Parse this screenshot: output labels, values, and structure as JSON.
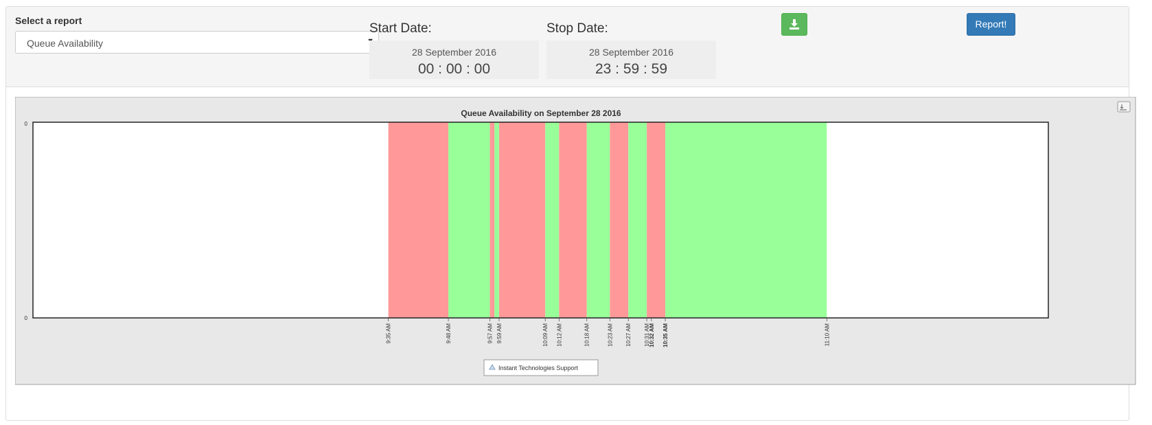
{
  "report_select": {
    "label": "Select a report",
    "selected": "Queue Availability"
  },
  "start": {
    "label": "Start Date:",
    "date": "28 September 2016",
    "time": "00 : 00 : 00"
  },
  "stop": {
    "label": "Stop Date:",
    "date": "28 September 2016",
    "time": "23 : 59 : 59"
  },
  "buttons": {
    "report_label": "Report!",
    "download_icon": "download-icon"
  },
  "colors": {
    "available": "#99ff99",
    "unavailable": "#ff9999",
    "download_button": "#5cb85c",
    "report_button": "#337ab7"
  },
  "chart_data": {
    "type": "area",
    "title": "Queue Availability on September 28 2016",
    "xlabel": "",
    "ylabel": "",
    "y_ticks": [
      "0",
      "0"
    ],
    "x_range": [
      "8:18 AM",
      "11:58 AM"
    ],
    "x_ticks": [
      {
        "label": "9:35 AM",
        "bold": false
      },
      {
        "label": "9:48 AM",
        "bold": false
      },
      {
        "label": "9:57 AM",
        "bold": false
      },
      {
        "label": "9:59 AM",
        "bold": false
      },
      {
        "label": "10:09 AM",
        "bold": false
      },
      {
        "label": "10:12 AM",
        "bold": false
      },
      {
        "label": "10:18 AM",
        "bold": false
      },
      {
        "label": "10:23 AM",
        "bold": false
      },
      {
        "label": "10:27 AM",
        "bold": false
      },
      {
        "label": "10:31 AM",
        "bold": false
      },
      {
        "label": "10:32 AM",
        "bold": true
      },
      {
        "label": "10:35 AM",
        "bold": true
      },
      {
        "label": "11:10 AM",
        "bold": false
      }
    ],
    "segments": [
      {
        "start": "9:35 AM",
        "end": "9:48 AM",
        "status": "unavailable"
      },
      {
        "start": "9:48 AM",
        "end": "9:57 AM",
        "status": "available"
      },
      {
        "start": "9:57 AM",
        "end": "9:58 AM",
        "status": "unavailable"
      },
      {
        "start": "9:58 AM",
        "end": "9:59 AM",
        "status": "available"
      },
      {
        "start": "9:59 AM",
        "end": "10:09 AM",
        "status": "unavailable"
      },
      {
        "start": "10:09 AM",
        "end": "10:12 AM",
        "status": "available"
      },
      {
        "start": "10:12 AM",
        "end": "10:18 AM",
        "status": "unavailable"
      },
      {
        "start": "10:18 AM",
        "end": "10:23 AM",
        "status": "available"
      },
      {
        "start": "10:23 AM",
        "end": "10:27 AM",
        "status": "unavailable"
      },
      {
        "start": "10:27 AM",
        "end": "10:31 AM",
        "status": "available"
      },
      {
        "start": "10:31 AM",
        "end": "10:35 AM",
        "status": "unavailable"
      },
      {
        "start": "10:35 AM",
        "end": "11:10 AM",
        "status": "available"
      }
    ],
    "legend": {
      "placement": "bottom-center",
      "entries": [
        "Instant Technologies Support"
      ]
    },
    "grid": false
  }
}
